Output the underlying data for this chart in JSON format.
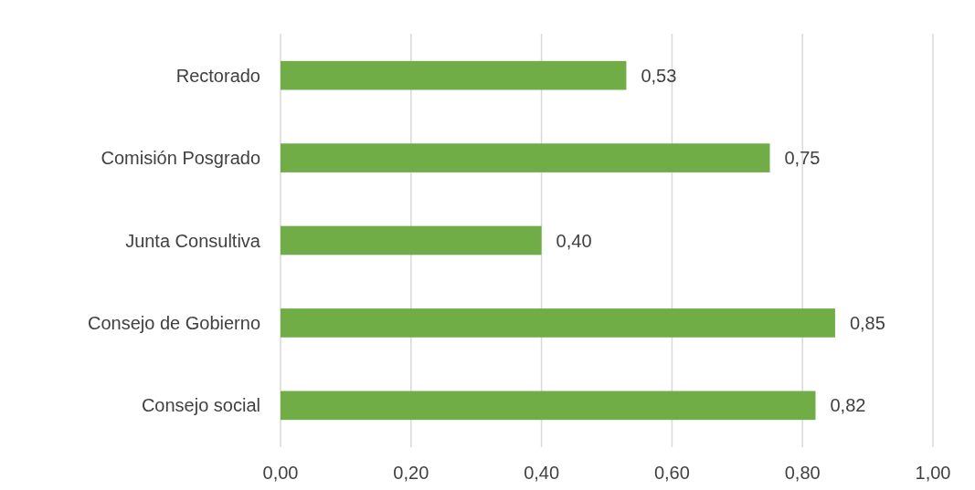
{
  "chart_data": {
    "type": "bar",
    "orientation": "horizontal",
    "categories": [
      "Rectorado",
      "Comisión Posgrado",
      "Junta Consultiva",
      "Consejo de Gobierno",
      "Consejo social"
    ],
    "values": [
      0.53,
      0.75,
      0.4,
      0.85,
      0.82
    ],
    "value_labels": [
      "0,53",
      "0,75",
      "0,40",
      "0,85",
      "0,82"
    ],
    "color": "#70ad47",
    "xlim": [
      0,
      1
    ],
    "xticks": [
      {
        "value": 0,
        "label": "0,00"
      },
      {
        "value": 0.2,
        "label": "0,20"
      },
      {
        "value": 0.4,
        "label": "0,40"
      },
      {
        "value": 0.6,
        "label": "0,60"
      },
      {
        "value": 0.8,
        "label": "0,80"
      },
      {
        "value": 1,
        "label": "1,00"
      }
    ],
    "grid": "x"
  }
}
